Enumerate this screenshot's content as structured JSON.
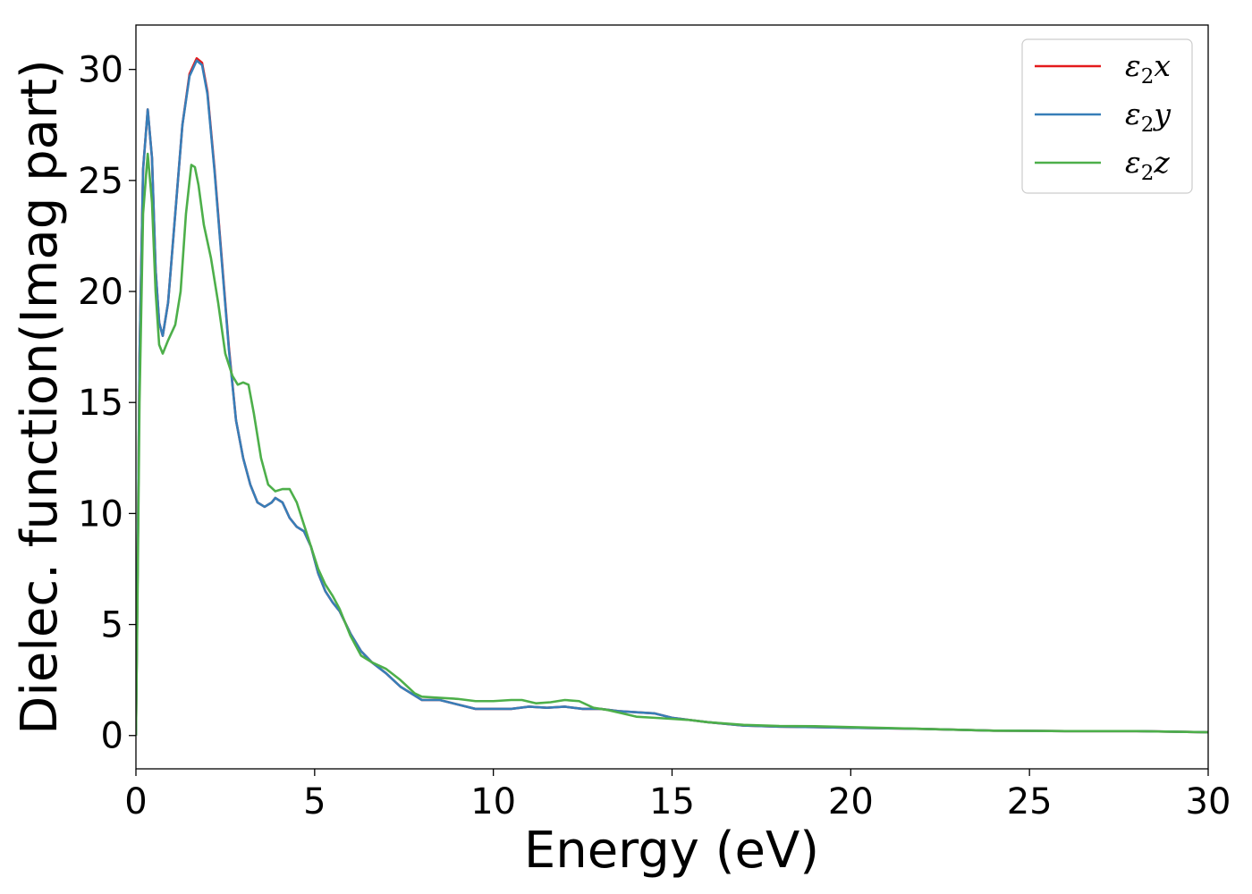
{
  "chart_data": {
    "type": "line",
    "title": "",
    "xlabel": "Energy (eV)",
    "ylabel": "Dielec. function(Imag part)",
    "xlim": [
      0,
      30
    ],
    "ylim": [
      -1.5,
      32
    ],
    "xticks": [
      0,
      5,
      10,
      15,
      20,
      25,
      30
    ],
    "yticks": [
      0,
      5,
      10,
      15,
      20,
      25,
      30
    ],
    "grid": false,
    "legend_position": "top-right",
    "series": [
      {
        "name": "ε2x",
        "legend_base": "ε",
        "legend_sub": "2",
        "legend_tail": "x",
        "color": "#e41a1c",
        "points": [
          [
            0,
            0
          ],
          [
            0.05,
            8
          ],
          [
            0.1,
            17
          ],
          [
            0.2,
            25.5
          ],
          [
            0.33,
            28.2
          ],
          [
            0.45,
            26
          ],
          [
            0.55,
            21
          ],
          [
            0.65,
            18.6
          ],
          [
            0.75,
            18
          ],
          [
            0.9,
            19.5
          ],
          [
            1.1,
            23.5
          ],
          [
            1.3,
            27.5
          ],
          [
            1.5,
            29.8
          ],
          [
            1.7,
            30.5
          ],
          [
            1.85,
            30.3
          ],
          [
            2.0,
            29
          ],
          [
            2.2,
            25.5
          ],
          [
            2.4,
            21.5
          ],
          [
            2.6,
            17.5
          ],
          [
            2.8,
            14.2
          ],
          [
            3.0,
            12.5
          ],
          [
            3.2,
            11.3
          ],
          [
            3.4,
            10.5
          ],
          [
            3.6,
            10.3
          ],
          [
            3.8,
            10.5
          ],
          [
            3.9,
            10.7
          ],
          [
            4.1,
            10.5
          ],
          [
            4.3,
            9.8
          ],
          [
            4.5,
            9.4
          ],
          [
            4.7,
            9.2
          ],
          [
            4.9,
            8.5
          ],
          [
            5.1,
            7.3
          ],
          [
            5.3,
            6.5
          ],
          [
            5.5,
            6.0
          ],
          [
            5.7,
            5.6
          ],
          [
            6.0,
            4.6
          ],
          [
            6.3,
            3.8
          ],
          [
            6.6,
            3.3
          ],
          [
            7.0,
            2.8
          ],
          [
            7.4,
            2.2
          ],
          [
            7.8,
            1.8
          ],
          [
            8.0,
            1.6
          ],
          [
            8.5,
            1.6
          ],
          [
            9.0,
            1.4
          ],
          [
            9.5,
            1.2
          ],
          [
            10.0,
            1.2
          ],
          [
            10.5,
            1.2
          ],
          [
            11.0,
            1.3
          ],
          [
            11.5,
            1.25
          ],
          [
            12.0,
            1.3
          ],
          [
            12.5,
            1.2
          ],
          [
            13.0,
            1.2
          ],
          [
            13.5,
            1.1
          ],
          [
            14.0,
            1.05
          ],
          [
            14.5,
            1.0
          ],
          [
            15.0,
            0.8
          ],
          [
            15.5,
            0.7
          ],
          [
            16.0,
            0.6
          ],
          [
            17.0,
            0.45
          ],
          [
            18.0,
            0.4
          ],
          [
            19.0,
            0.38
          ],
          [
            20.0,
            0.35
          ],
          [
            22.0,
            0.3
          ],
          [
            24.0,
            0.22
          ],
          [
            26.0,
            0.2
          ],
          [
            28.0,
            0.2
          ],
          [
            30.0,
            0.15
          ]
        ]
      },
      {
        "name": "ε2y",
        "legend_base": "ε",
        "legend_sub": "2",
        "legend_tail": "y",
        "color": "#377eb8",
        "points": [
          [
            0,
            0
          ],
          [
            0.05,
            8
          ],
          [
            0.1,
            17
          ],
          [
            0.2,
            25.5
          ],
          [
            0.33,
            28.2
          ],
          [
            0.45,
            26
          ],
          [
            0.55,
            21
          ],
          [
            0.65,
            18.6
          ],
          [
            0.75,
            18
          ],
          [
            0.9,
            19.5
          ],
          [
            1.1,
            23.5
          ],
          [
            1.3,
            27.5
          ],
          [
            1.5,
            29.7
          ],
          [
            1.7,
            30.4
          ],
          [
            1.85,
            30.2
          ],
          [
            2.0,
            28.9
          ],
          [
            2.2,
            25.4
          ],
          [
            2.4,
            21.4
          ],
          [
            2.6,
            17.4
          ],
          [
            2.8,
            14.2
          ],
          [
            3.0,
            12.5
          ],
          [
            3.2,
            11.3
          ],
          [
            3.4,
            10.5
          ],
          [
            3.6,
            10.3
          ],
          [
            3.8,
            10.5
          ],
          [
            3.9,
            10.7
          ],
          [
            4.1,
            10.5
          ],
          [
            4.3,
            9.8
          ],
          [
            4.5,
            9.4
          ],
          [
            4.7,
            9.2
          ],
          [
            4.9,
            8.5
          ],
          [
            5.1,
            7.3
          ],
          [
            5.3,
            6.5
          ],
          [
            5.5,
            6.0
          ],
          [
            5.7,
            5.6
          ],
          [
            6.0,
            4.6
          ],
          [
            6.3,
            3.8
          ],
          [
            6.6,
            3.3
          ],
          [
            7.0,
            2.8
          ],
          [
            7.4,
            2.2
          ],
          [
            7.8,
            1.8
          ],
          [
            8.0,
            1.6
          ],
          [
            8.5,
            1.6
          ],
          [
            9.0,
            1.4
          ],
          [
            9.5,
            1.2
          ],
          [
            10.0,
            1.2
          ],
          [
            10.5,
            1.2
          ],
          [
            11.0,
            1.3
          ],
          [
            11.5,
            1.25
          ],
          [
            12.0,
            1.3
          ],
          [
            12.5,
            1.2
          ],
          [
            13.0,
            1.2
          ],
          [
            13.5,
            1.1
          ],
          [
            14.0,
            1.05
          ],
          [
            14.5,
            1.0
          ],
          [
            15.0,
            0.8
          ],
          [
            15.5,
            0.7
          ],
          [
            16.0,
            0.6
          ],
          [
            17.0,
            0.45
          ],
          [
            18.0,
            0.4
          ],
          [
            19.0,
            0.38
          ],
          [
            20.0,
            0.35
          ],
          [
            22.0,
            0.3
          ],
          [
            24.0,
            0.22
          ],
          [
            26.0,
            0.2
          ],
          [
            28.0,
            0.2
          ],
          [
            30.0,
            0.15
          ]
        ]
      },
      {
        "name": "ε2z",
        "legend_base": "ε",
        "legend_sub": "2",
        "legend_tail": "z",
        "color": "#4daf4a",
        "points": [
          [
            0,
            0
          ],
          [
            0.05,
            7
          ],
          [
            0.1,
            15
          ],
          [
            0.2,
            23.5
          ],
          [
            0.33,
            26.2
          ],
          [
            0.45,
            24
          ],
          [
            0.55,
            20
          ],
          [
            0.65,
            17.6
          ],
          [
            0.75,
            17.2
          ],
          [
            0.9,
            17.8
          ],
          [
            1.1,
            18.5
          ],
          [
            1.25,
            20
          ],
          [
            1.4,
            23.5
          ],
          [
            1.55,
            25.7
          ],
          [
            1.65,
            25.6
          ],
          [
            1.75,
            24.8
          ],
          [
            1.9,
            23
          ],
          [
            2.1,
            21.5
          ],
          [
            2.3,
            19.5
          ],
          [
            2.5,
            17.2
          ],
          [
            2.7,
            16.2
          ],
          [
            2.85,
            15.8
          ],
          [
            3.0,
            15.9
          ],
          [
            3.15,
            15.8
          ],
          [
            3.3,
            14.5
          ],
          [
            3.5,
            12.5
          ],
          [
            3.7,
            11.3
          ],
          [
            3.9,
            11.0
          ],
          [
            4.1,
            11.1
          ],
          [
            4.3,
            11.1
          ],
          [
            4.5,
            10.5
          ],
          [
            4.7,
            9.5
          ],
          [
            4.9,
            8.5
          ],
          [
            5.1,
            7.5
          ],
          [
            5.3,
            6.8
          ],
          [
            5.5,
            6.3
          ],
          [
            5.7,
            5.7
          ],
          [
            6.0,
            4.5
          ],
          [
            6.3,
            3.6
          ],
          [
            6.6,
            3.3
          ],
          [
            7.0,
            3.0
          ],
          [
            7.4,
            2.5
          ],
          [
            7.8,
            1.9
          ],
          [
            8.0,
            1.75
          ],
          [
            8.5,
            1.7
          ],
          [
            9.0,
            1.65
          ],
          [
            9.5,
            1.55
          ],
          [
            10.0,
            1.55
          ],
          [
            10.5,
            1.6
          ],
          [
            10.8,
            1.6
          ],
          [
            11.2,
            1.45
          ],
          [
            11.6,
            1.5
          ],
          [
            12.0,
            1.6
          ],
          [
            12.4,
            1.55
          ],
          [
            12.8,
            1.25
          ],
          [
            13.2,
            1.15
          ],
          [
            13.6,
            1.0
          ],
          [
            14.0,
            0.85
          ],
          [
            14.5,
            0.8
          ],
          [
            15.0,
            0.75
          ],
          [
            15.5,
            0.7
          ],
          [
            16.0,
            0.6
          ],
          [
            17.0,
            0.48
          ],
          [
            18.0,
            0.43
          ],
          [
            19.0,
            0.42
          ],
          [
            20.0,
            0.38
          ],
          [
            22.0,
            0.3
          ],
          [
            24.0,
            0.22
          ],
          [
            26.0,
            0.2
          ],
          [
            28.0,
            0.2
          ],
          [
            30.0,
            0.15
          ]
        ]
      }
    ]
  }
}
